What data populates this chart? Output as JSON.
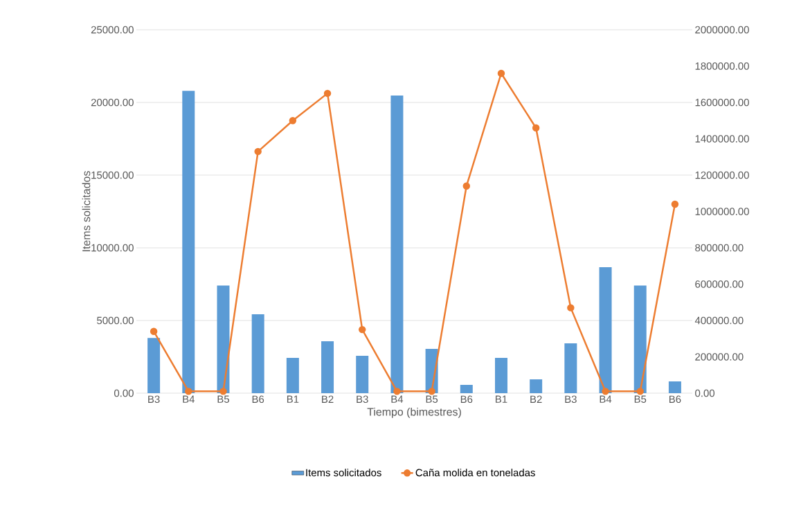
{
  "chart_data": {
    "type": "bar",
    "xlabel": "Tiempo (bimestres)",
    "ylabel": "Items solicitados",
    "categories": [
      "B3",
      "B4",
      "B5",
      "B6",
      "B1",
      "B2",
      "B3",
      "B4",
      "B5",
      "B6",
      "B1",
      "B2",
      "B3",
      "B4",
      "B5",
      "B6"
    ],
    "series": [
      {
        "name": "Items solicitados",
        "color": "#5b9bd5",
        "values": [
          3800,
          20800,
          7400,
          5430,
          2430,
          3570,
          2570,
          20470,
          3050,
          570,
          2430,
          950,
          3430,
          8660,
          7400,
          810
        ]
      },
      {
        "name": "Caña molida en toneladas",
        "type": "line",
        "axis": "y2",
        "color": "#ed7d31",
        "values": [
          340000,
          10000,
          10000,
          1330000,
          1500000,
          1650000,
          350000,
          10000,
          10000,
          1140000,
          1760000,
          1460000,
          470000,
          10000,
          10000,
          1040000
        ]
      }
    ],
    "ylim": [
      0,
      25000
    ],
    "yticks": [
      {
        "value": 0,
        "label": "0.00"
      },
      {
        "value": 5000,
        "label": "5000.00"
      },
      {
        "value": 10000,
        "label": "10000.00"
      },
      {
        "value": 15000,
        "label": "15000.00"
      },
      {
        "value": 20000,
        "label": "20000.00"
      },
      {
        "value": 25000,
        "label": "25000.00"
      }
    ],
    "y2lim": [
      0,
      2000000
    ],
    "y2ticks": [
      {
        "value": 0,
        "label": "0.00"
      },
      {
        "value": 200000,
        "label": "200000.00"
      },
      {
        "value": 400000,
        "label": "400000.00"
      },
      {
        "value": 600000,
        "label": "600000.00"
      },
      {
        "value": 800000,
        "label": "800000.00"
      },
      {
        "value": 1000000,
        "label": "1000000.00"
      },
      {
        "value": 1200000,
        "label": "1200000.00"
      },
      {
        "value": 1400000,
        "label": "1400000.00"
      },
      {
        "value": 1600000,
        "label": "1600000.00"
      },
      {
        "value": 1800000,
        "label": "1800000.00"
      },
      {
        "value": 2000000,
        "label": "2000000.00"
      }
    ],
    "grid": "y",
    "legend": "bottom",
    "marker": "circle",
    "line_style": "solid"
  }
}
